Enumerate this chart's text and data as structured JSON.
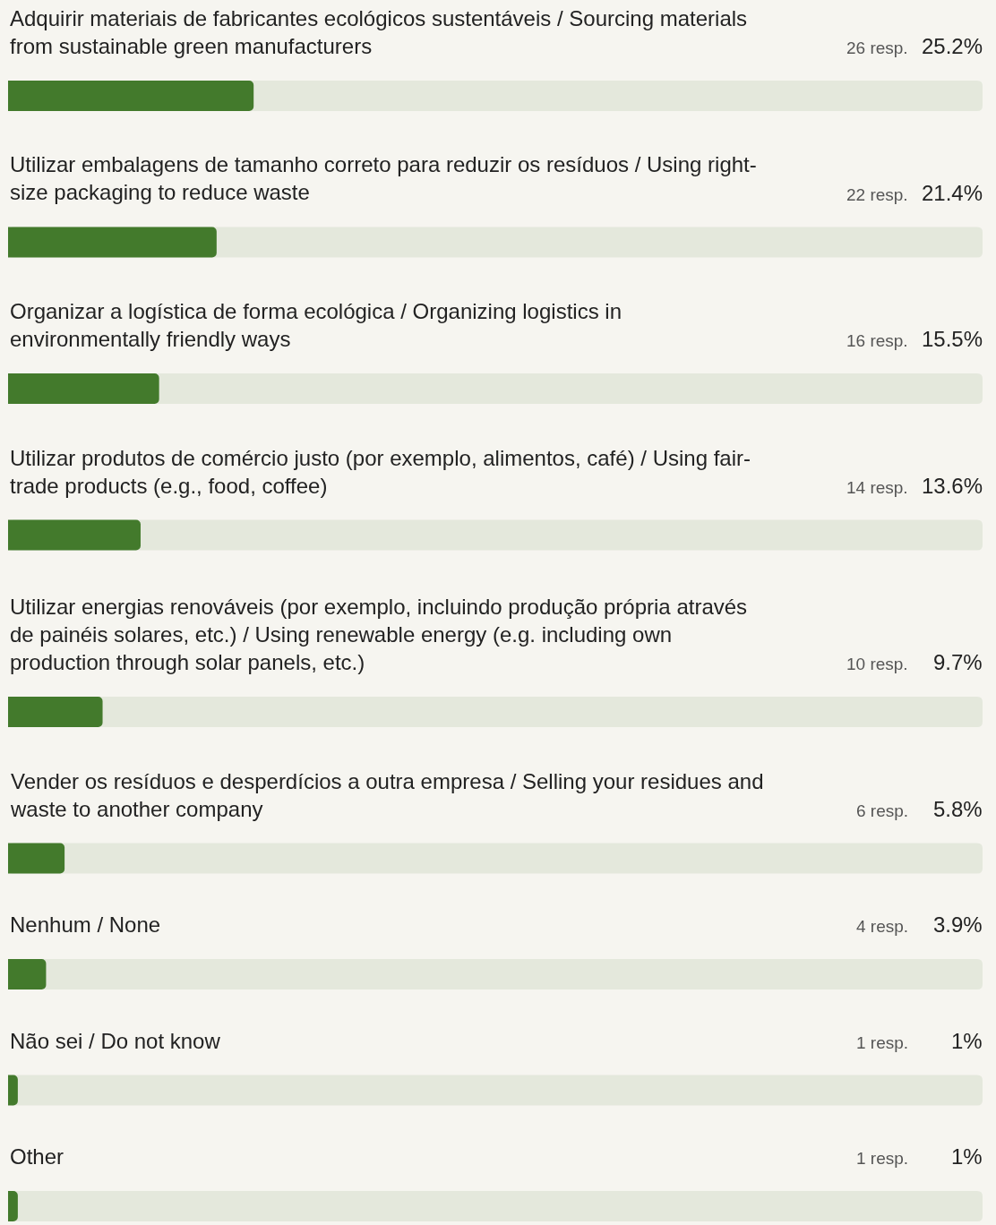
{
  "chart_data": {
    "type": "bar",
    "orientation": "horizontal",
    "categories": [
      "Adquirir materiais de fabricantes ecológicos sustentáveis / Sourcing materials from sustainable green manufacturers",
      "Utilizar embalagens de tamanho correto para reduzir os resíduos / Using right-size packaging to reduce waste",
      "Organizar a logística de forma ecológica / Organizing logistics in environmentally friendly ways",
      "Utilizar produtos de comércio justo (por exemplo, alimentos, café) / Using fair-trade products (e.g., food, coffee)",
      "Utilizar energias renováveis (por exemplo, incluindo produção própria através de painéis solares, etc.) / Using renewable energy (e.g. including own production through solar panels, etc.)",
      "Vender os resíduos e desperdícios a outra empresa / Selling your residues and waste to another company",
      "Nenhum / None",
      "Não sei / Do not know",
      "Other"
    ],
    "values": [
      25.2,
      21.4,
      15.5,
      13.6,
      9.7,
      5.8,
      3.9,
      1,
      1
    ],
    "value_labels": [
      "25.2%",
      "21.4%",
      "15.5%",
      "13.6%",
      "9.7%",
      "5.8%",
      "3.9%",
      "1%",
      "1%"
    ],
    "color": "#437a2c",
    "xlim": [
      0,
      100
    ],
    "tick_labels": "y",
    "annotations": [
      "26 resp.",
      "22 resp.",
      "16 resp.",
      "14 resp.",
      "10 resp.",
      "6 resp.",
      "4 resp.",
      "1 resp.",
      "1 resp."
    ]
  }
}
